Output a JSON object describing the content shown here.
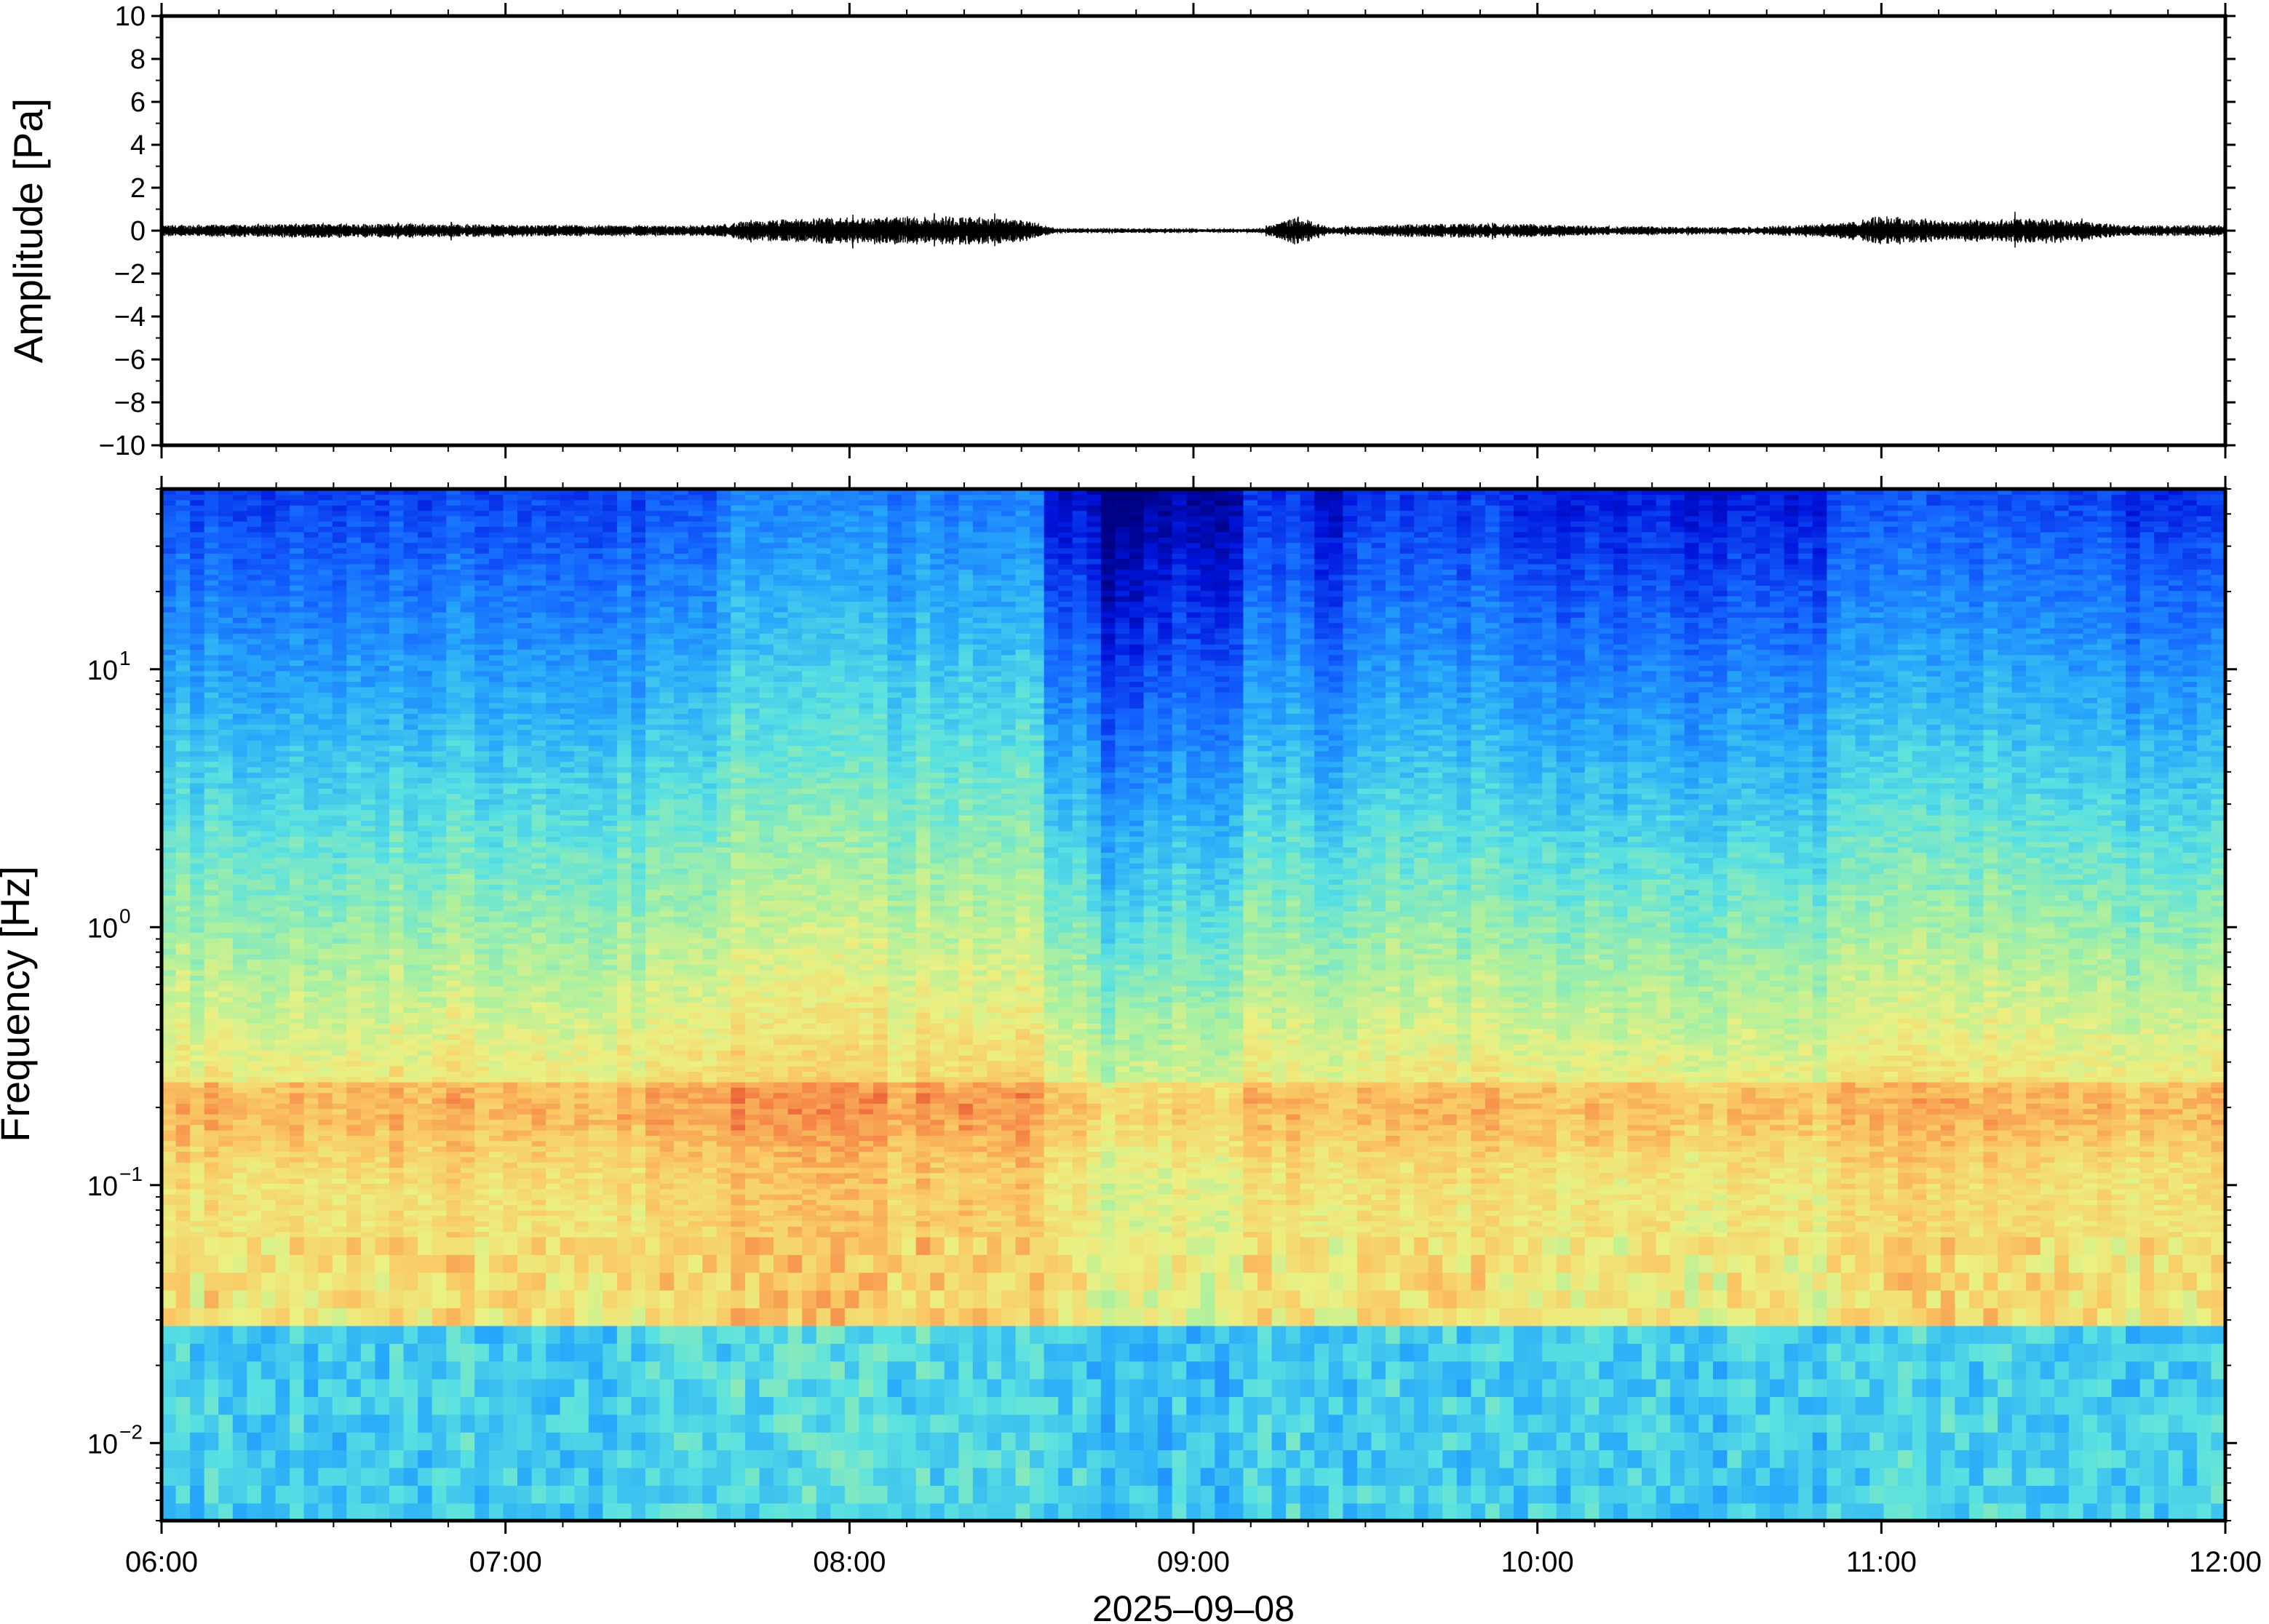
{
  "chart_data": [
    {
      "type": "line",
      "ylabel": "Amplitude [Pa]",
      "xlabel": "",
      "x_range": [
        "06:00",
        "12:00"
      ],
      "ylim": [
        -10,
        10
      ],
      "ytick_labels": [
        "10",
        "8",
        "6",
        "4",
        "2",
        "0",
        "−2",
        "−4",
        "−6",
        "−8",
        "−10"
      ],
      "ytick_values": [
        10,
        8,
        6,
        4,
        2,
        0,
        -2,
        -4,
        -6,
        -8,
        -10
      ],
      "series": [
        {
          "envelope_time_hours": [
            6.0,
            6.5,
            6.9,
            7.3,
            7.6,
            7.7,
            7.9,
            8.1,
            8.3,
            8.5,
            8.6,
            8.8,
            9.1,
            9.2,
            9.3,
            9.4,
            9.6,
            9.9,
            10.2,
            10.6,
            10.9,
            11.0,
            11.2,
            11.5,
            11.7,
            12.0
          ],
          "envelope_amplitude_pa": [
            0.25,
            0.35,
            0.3,
            0.25,
            0.25,
            0.45,
            0.6,
            0.65,
            0.7,
            0.55,
            0.1,
            0.1,
            0.08,
            0.1,
            0.7,
            0.15,
            0.3,
            0.35,
            0.2,
            0.15,
            0.4,
            0.7,
            0.5,
            0.6,
            0.25,
            0.25
          ]
        }
      ]
    },
    {
      "type": "heatmap",
      "ylabel": "Frequency [Hz]",
      "xlabel": "2025–09–08",
      "x_range": [
        "06:00",
        "12:00"
      ],
      "xtick_labels": [
        "06:00",
        "07:00",
        "08:00",
        "09:00",
        "10:00",
        "11:00",
        "12:00"
      ],
      "xtick_hours": [
        6,
        7,
        8,
        9,
        10,
        11,
        12
      ],
      "y_scale": "log",
      "ylim": [
        0.005,
        50
      ],
      "ytick_labels": [
        {
          "base": "10",
          "exp": "1",
          "value": 10
        },
        {
          "base": "10",
          "exp": "0",
          "value": 1
        },
        {
          "base": "10",
          "exp": "−1",
          "value": 0.1
        },
        {
          "base": "10",
          "exp": "−2",
          "value": 0.01
        }
      ],
      "colormap": "jet",
      "time_segments": [
        {
          "start": 6.0,
          "end": 7.63,
          "level": 0.5
        },
        {
          "start": 7.63,
          "end": 8.55,
          "level": 0.66
        },
        {
          "start": 8.55,
          "end": 8.72,
          "level": 0.3
        },
        {
          "start": 8.72,
          "end": 8.85,
          "level": 0.08
        },
        {
          "start": 8.85,
          "end": 9.15,
          "level": 0.22
        },
        {
          "start": 9.15,
          "end": 9.35,
          "level": 0.42
        },
        {
          "start": 9.35,
          "end": 9.45,
          "level": 0.25
        },
        {
          "start": 9.45,
          "end": 9.95,
          "level": 0.45
        },
        {
          "start": 9.95,
          "end": 10.85,
          "level": 0.36
        },
        {
          "start": 10.85,
          "end": 11.7,
          "level": 0.52
        },
        {
          "start": 11.7,
          "end": 12.0,
          "level": 0.42
        }
      ]
    }
  ]
}
